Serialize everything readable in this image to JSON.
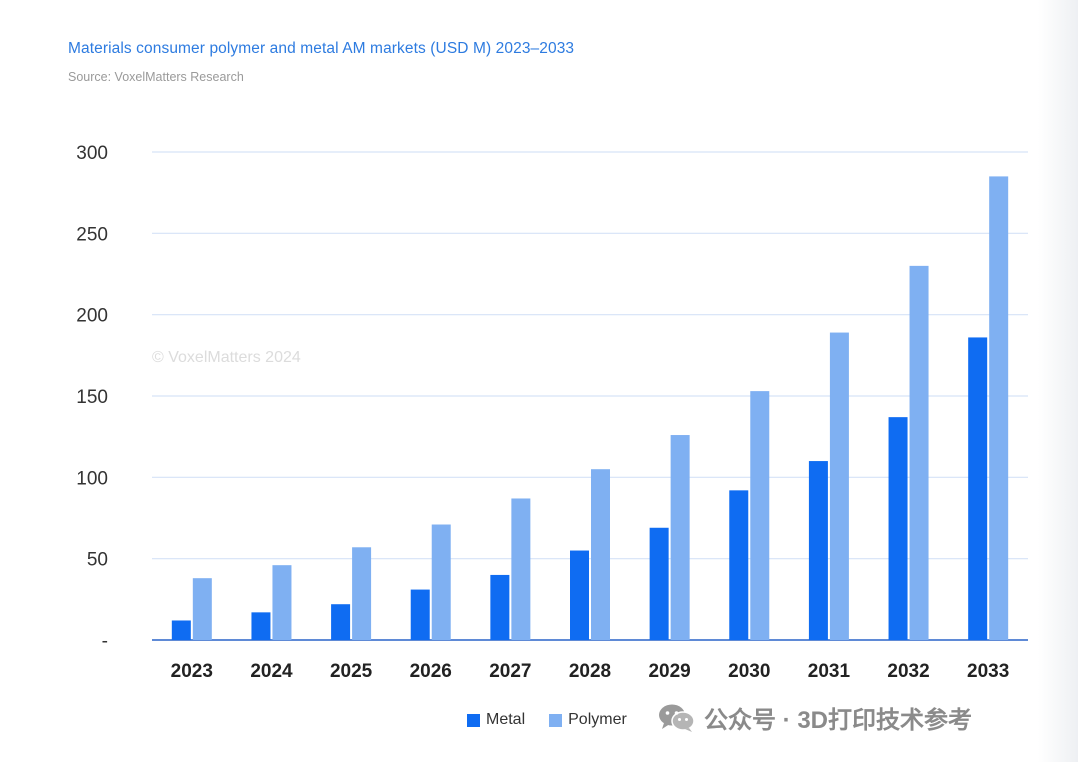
{
  "header": {
    "title": "Materials consumer polymer and metal AM markets (USD M) 2023–2033",
    "source": "Source: VoxelMatters Research"
  },
  "watermark_text": "© VoxelMatters 2024",
  "wechat": {
    "icon": "wechat-icon",
    "label": "公众号 · 3D打印技术参考"
  },
  "chart_data": {
    "type": "bar",
    "title": "Materials consumer polymer and metal AM markets (USD M) 2023–2033",
    "categories": [
      "2023",
      "2024",
      "2025",
      "2026",
      "2027",
      "2028",
      "2029",
      "2030",
      "2031",
      "2032",
      "2033"
    ],
    "series": [
      {
        "name": "Metal",
        "color": "#0f6cf2",
        "values": [
          12,
          17,
          22,
          31,
          40,
          55,
          69,
          92,
          110,
          137,
          186
        ]
      },
      {
        "name": "Polymer",
        "color": "#7fb0f2",
        "values": [
          38,
          46,
          57,
          71,
          87,
          105,
          126,
          153,
          189,
          230,
          285
        ]
      }
    ],
    "yticks": [
      0,
      50,
      100,
      150,
      200,
      250,
      300
    ],
    "ytick_labels": [
      "-",
      "50",
      "100",
      "150",
      "200",
      "250",
      "300"
    ],
    "ylim": [
      0,
      300
    ],
    "xlabel": "",
    "ylabel": "",
    "grid": true,
    "legend_position": "bottom-center"
  }
}
